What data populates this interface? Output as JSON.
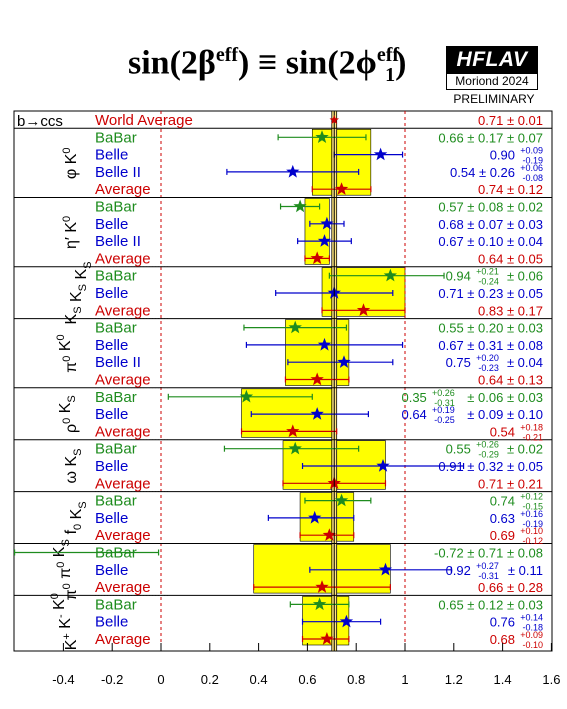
{
  "header": {
    "title_left": "sin(2β",
    "title_left_sup": "eff",
    "title_mid": ") ≡ sin(2ϕ",
    "title_sub": "1",
    "title_right_sup": "eff",
    "title_end": ")",
    "logo_top": "HFLAV",
    "logo_bottom": "Moriond 2024",
    "preliminary": "PRELIMINARY"
  },
  "colors": {
    "babar": "#1e8c1e",
    "belle": "#0000cc",
    "belle2": "#0000cc",
    "average": "#cc0000",
    "band": "#ffff00"
  },
  "chart_data": {
    "type": "scatter",
    "xlim": [
      -0.4,
      1.6
    ],
    "x_ticks": [
      "-0.4",
      "-0.2",
      "0",
      "0.2",
      "0.4",
      "0.6",
      "0.8",
      "1",
      "1.2",
      "1.4",
      "1.6"
    ],
    "reference_lines": [
      0,
      1
    ],
    "world_average": {
      "value": 0.71,
      "error": 0.01
    },
    "groups": [
      {
        "label": "b→ccs",
        "label_html": "b→ccs",
        "rows": [
          {
            "name": "World Average",
            "kind": "world",
            "value": 0.71,
            "err_lo": 0.01,
            "err_hi": 0.01,
            "text": "0.71 ± 0.01"
          }
        ]
      },
      {
        "label": "φ K0",
        "rows": [
          {
            "name": "BaBar",
            "kind": "babar",
            "value": 0.66,
            "err_lo": 0.18,
            "err_hi": 0.18,
            "text": "0.66 ± 0.17 ± 0.07"
          },
          {
            "name": "Belle",
            "kind": "belle",
            "value": 0.9,
            "err_lo": 0.19,
            "err_hi": 0.09,
            "text_main": "0.90",
            "text_up": "+0.09",
            "text_dn": "-0.19"
          },
          {
            "name": "Belle II",
            "kind": "belle",
            "value": 0.54,
            "err_lo": 0.27,
            "err_hi": 0.27,
            "text_main": "0.54 ± 0.26",
            "text_up": "+0.06",
            "text_dn": "-0.08"
          },
          {
            "name": "Average",
            "kind": "average",
            "value": 0.74,
            "err_lo": 0.12,
            "err_hi": 0.12,
            "text": "0.74 ± 0.12"
          }
        ]
      },
      {
        "label": "η′ K0",
        "rows": [
          {
            "name": "BaBar",
            "kind": "babar",
            "value": 0.57,
            "err_lo": 0.08,
            "err_hi": 0.08,
            "text": "0.57 ± 0.08 ± 0.02"
          },
          {
            "name": "Belle",
            "kind": "belle",
            "value": 0.68,
            "err_lo": 0.07,
            "err_hi": 0.07,
            "text": "0.68 ± 0.07 ± 0.03"
          },
          {
            "name": "Belle II",
            "kind": "belle",
            "value": 0.67,
            "err_lo": 0.11,
            "err_hi": 0.11,
            "text": "0.67 ± 0.10 ± 0.04"
          },
          {
            "name": "Average",
            "kind": "average",
            "value": 0.64,
            "err_lo": 0.05,
            "err_hi": 0.05,
            "text": "0.64 ± 0.05"
          }
        ]
      },
      {
        "label": "KS KS KS",
        "rows": [
          {
            "name": "BaBar",
            "kind": "babar",
            "value": 0.94,
            "err_lo": 0.25,
            "err_hi": 0.22,
            "text_main": "0.94",
            "text_up": "+0.21",
            "text_dn": "-0.24",
            "text_tail": " ± 0.06"
          },
          {
            "name": "Belle",
            "kind": "belle",
            "value": 0.71,
            "err_lo": 0.24,
            "err_hi": 0.24,
            "text": "0.71 ± 0.23 ± 0.05"
          },
          {
            "name": "Average",
            "kind": "average",
            "value": 0.83,
            "err_lo": 0.17,
            "err_hi": 0.17,
            "text": "0.83 ± 0.17"
          }
        ]
      },
      {
        "label": "π0 K0",
        "rows": [
          {
            "name": "BaBar",
            "kind": "babar",
            "value": 0.55,
            "err_lo": 0.21,
            "err_hi": 0.21,
            "text": "0.55 ± 0.20 ± 0.03"
          },
          {
            "name": "Belle",
            "kind": "belle",
            "value": 0.67,
            "err_lo": 0.32,
            "err_hi": 0.32,
            "text": "0.67 ± 0.31 ± 0.08"
          },
          {
            "name": "Belle II",
            "kind": "belle",
            "value": 0.75,
            "err_lo": 0.23,
            "err_hi": 0.2,
            "text_main": "0.75",
            "text_up": "+0.20",
            "text_dn": "-0.23",
            "text_tail": " ± 0.04"
          },
          {
            "name": "Average",
            "kind": "average",
            "value": 0.64,
            "err_lo": 0.13,
            "err_hi": 0.13,
            "text": "0.64 ± 0.13"
          }
        ]
      },
      {
        "label": "ρ0 KS",
        "rows": [
          {
            "name": "BaBar",
            "kind": "babar",
            "value": 0.35,
            "err_lo": 0.32,
            "err_hi": 0.27,
            "text_main": "0.35",
            "text_up": "+0.26",
            "text_dn": "-0.31",
            "text_tail": " ± 0.06 ± 0.03"
          },
          {
            "name": "Belle",
            "kind": "belle",
            "value": 0.64,
            "err_lo": 0.27,
            "err_hi": 0.21,
            "text_main": "0.64",
            "text_up": "+0.19",
            "text_dn": "-0.25",
            "text_tail": " ± 0.09 ± 0.10"
          },
          {
            "name": "Average",
            "kind": "average",
            "value": 0.54,
            "err_lo": 0.21,
            "err_hi": 0.18,
            "text_main": "0.54",
            "text_up": "+0.18",
            "text_dn": "-0.21"
          }
        ]
      },
      {
        "label": "ω KS",
        "rows": [
          {
            "name": "BaBar",
            "kind": "babar",
            "value": 0.55,
            "err_lo": 0.29,
            "err_hi": 0.26,
            "text_main": "0.55",
            "text_up": "+0.26",
            "text_dn": "-0.29",
            "text_tail": " ± 0.02"
          },
          {
            "name": "Belle",
            "kind": "belle",
            "value": 0.91,
            "err_lo": 0.33,
            "err_hi": 0.33,
            "text": "0.91 ± 0.32 ± 0.05"
          },
          {
            "name": "Average",
            "kind": "average",
            "value": 0.71,
            "err_lo": 0.21,
            "err_hi": 0.21,
            "text": "0.71 ± 0.21"
          }
        ]
      },
      {
        "label": "f0 KS",
        "rows": [
          {
            "name": "BaBar",
            "kind": "babar",
            "value": 0.74,
            "err_lo": 0.15,
            "err_hi": 0.12,
            "text_main": "0.74",
            "text_up": "+0.12",
            "text_dn": "-0.15"
          },
          {
            "name": "Belle",
            "kind": "belle",
            "value": 0.63,
            "err_lo": 0.19,
            "err_hi": 0.16,
            "text_main": "0.63",
            "text_up": "+0.16",
            "text_dn": "-0.19"
          },
          {
            "name": "Average",
            "kind": "average",
            "value": 0.69,
            "err_lo": 0.12,
            "err_hi": 0.1,
            "text_main": "0.69",
            "text_up": "+0.10",
            "text_dn": "-0.12"
          }
        ]
      },
      {
        "label": "π0 π0 KS",
        "rows": [
          {
            "name": "BaBar",
            "kind": "babar",
            "value": -0.72,
            "err_lo": 0.71,
            "err_hi": 0.71,
            "text": "-0.72 ± 0.71 ± 0.08"
          },
          {
            "name": "Belle",
            "kind": "belle",
            "value": 0.92,
            "err_lo": 0.31,
            "err_hi": 0.27,
            "text_main": "0.92",
            "text_up": "+0.27",
            "text_dn": "-0.31",
            "text_tail": " ± 0.11"
          },
          {
            "name": "Average",
            "kind": "average",
            "value": 0.66,
            "err_lo": 0.28,
            "err_hi": 0.28,
            "text": "0.66 ± 0.28"
          }
        ]
      },
      {
        "label": "K+ K- K0",
        "rows": [
          {
            "name": "BaBar",
            "kind": "babar",
            "value": 0.65,
            "err_lo": 0.12,
            "err_hi": 0.12,
            "text": "0.65 ± 0.12 ± 0.03"
          },
          {
            "name": "Belle",
            "kind": "belle",
            "value": 0.76,
            "err_lo": 0.18,
            "err_hi": 0.14,
            "text_main": "0.76",
            "text_up": "+0.14",
            "text_dn": "-0.18"
          },
          {
            "name": "Average",
            "kind": "average",
            "value": 0.68,
            "err_lo": 0.1,
            "err_hi": 0.09,
            "text_main": "0.68",
            "text_up": "+0.09",
            "text_dn": "-0.10"
          }
        ]
      }
    ]
  }
}
